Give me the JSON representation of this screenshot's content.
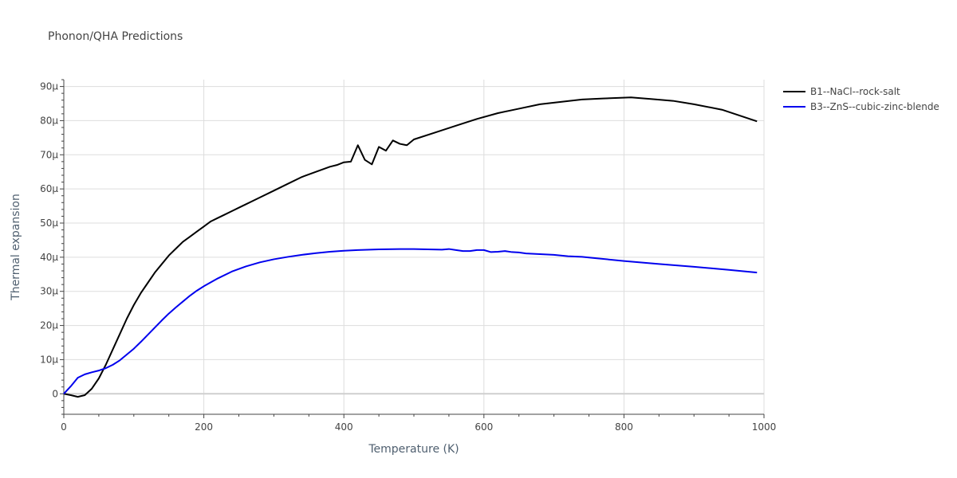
{
  "chart_data": {
    "type": "line",
    "title": "Phonon/QHA Predictions",
    "xlabel": "Temperature (K)",
    "ylabel": "Thermal expansion",
    "xlim": [
      0,
      1000
    ],
    "ylim": [
      -6e-06,
      9.2e-05
    ],
    "grid": true,
    "legend_position": "top-right",
    "x_ticks": [
      0,
      200,
      400,
      600,
      800,
      1000
    ],
    "x_tick_labels": [
      "0",
      "200",
      "400",
      "600",
      "800",
      "1000"
    ],
    "y_ticks": [
      0,
      1e-05,
      2e-05,
      3e-05,
      4e-05,
      5e-05,
      6e-05,
      7e-05,
      8e-05,
      9e-05
    ],
    "y_tick_labels": [
      "0",
      "10μ",
      "20μ",
      "30μ",
      "40μ",
      "50μ",
      "60μ",
      "70μ",
      "80μ",
      "90μ"
    ],
    "series": [
      {
        "name": "B1--NaCl--rock-salt",
        "color": "#000000",
        "x": [
          0,
          10,
          20,
          30,
          40,
          50,
          60,
          70,
          80,
          90,
          100,
          110,
          120,
          130,
          140,
          150,
          160,
          170,
          180,
          190,
          200,
          210,
          220,
          230,
          240,
          250,
          260,
          280,
          300,
          320,
          340,
          360,
          380,
          390,
          400,
          410,
          420,
          430,
          440,
          450,
          460,
          470,
          480,
          490,
          500,
          530,
          560,
          590,
          620,
          650,
          680,
          710,
          740,
          770,
          810,
          840,
          870,
          900,
          940,
          990
        ],
        "y": [
          0,
          -4e-07,
          -9e-07,
          -4e-07,
          1.5e-06,
          4.5e-06,
          8.5e-06,
          1.3e-05,
          1.75e-05,
          2.2e-05,
          2.6e-05,
          2.95e-05,
          3.25e-05,
          3.55e-05,
          3.8e-05,
          4.05e-05,
          4.25e-05,
          4.45e-05,
          4.6e-05,
          4.75e-05,
          4.9e-05,
          5.05e-05,
          5.15e-05,
          5.25e-05,
          5.35e-05,
          5.45e-05,
          5.55e-05,
          5.75e-05,
          5.95e-05,
          6.15e-05,
          6.35e-05,
          6.5e-05,
          6.65e-05,
          6.7e-05,
          6.78e-05,
          6.8e-05,
          7.28e-05,
          6.85e-05,
          6.72e-05,
          7.23e-05,
          7.12e-05,
          7.42e-05,
          7.32e-05,
          7.28e-05,
          7.45e-05,
          7.65e-05,
          7.85e-05,
          8.05e-05,
          8.22e-05,
          8.35e-05,
          8.48e-05,
          8.55e-05,
          8.62e-05,
          8.65e-05,
          8.68e-05,
          8.63e-05,
          8.58e-05,
          8.48e-05,
          8.32e-05,
          7.98e-05
        ]
      },
      {
        "name": "B3--ZnS--cubic-zinc-blende",
        "color": "#0000ee",
        "x": [
          0,
          10,
          20,
          30,
          40,
          50,
          60,
          70,
          80,
          90,
          100,
          110,
          120,
          130,
          140,
          150,
          160,
          170,
          180,
          190,
          200,
          220,
          240,
          260,
          280,
          300,
          320,
          340,
          360,
          380,
          400,
          420,
          450,
          480,
          500,
          520,
          540,
          550,
          560,
          570,
          580,
          590,
          600,
          610,
          620,
          630,
          640,
          650,
          660,
          680,
          700,
          720,
          740,
          760,
          800,
          850,
          900,
          950,
          990
        ],
        "y": [
          0,
          2.2e-06,
          4.7e-06,
          5.7e-06,
          6.3e-06,
          6.8e-06,
          7.5e-06,
          8.5e-06,
          9.8e-06,
          1.15e-05,
          1.32e-05,
          1.52e-05,
          1.73e-05,
          1.94e-05,
          2.15e-05,
          2.35e-05,
          2.53e-05,
          2.7e-05,
          2.87e-05,
          3.02e-05,
          3.15e-05,
          3.38e-05,
          3.58e-05,
          3.73e-05,
          3.85e-05,
          3.94e-05,
          4.01e-05,
          4.07e-05,
          4.12e-05,
          4.16e-05,
          4.19e-05,
          4.21e-05,
          4.23e-05,
          4.24e-05,
          4.24e-05,
          4.23e-05,
          4.22e-05,
          4.24e-05,
          4.21e-05,
          4.18e-05,
          4.18e-05,
          4.21e-05,
          4.21e-05,
          4.15e-05,
          4.16e-05,
          4.18e-05,
          4.15e-05,
          4.14e-05,
          4.11e-05,
          4.09e-05,
          4.07e-05,
          4.03e-05,
          4.01e-05,
          3.97e-05,
          3.89e-05,
          3.8e-05,
          3.72e-05,
          3.63e-05,
          3.55e-05
        ]
      }
    ]
  }
}
